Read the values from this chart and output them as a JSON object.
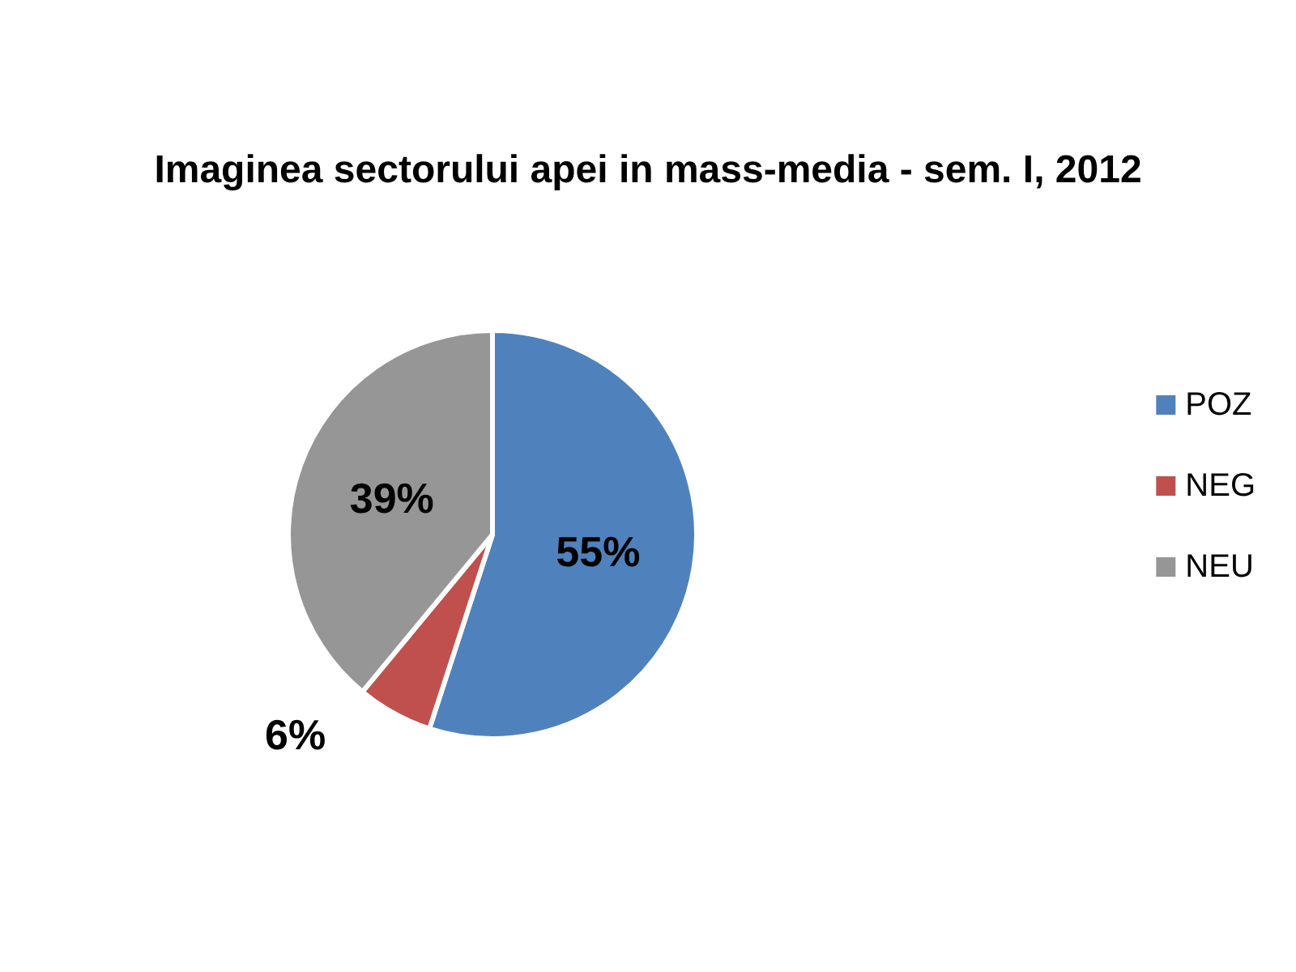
{
  "chart_data": {
    "type": "pie",
    "title": "Imaginea sectorului apei in mass-media - sem. I, 2012",
    "categories": [
      "POZ",
      "NEG",
      "NEU"
    ],
    "values": [
      55,
      6,
      39
    ],
    "colors": [
      "#4f81bd",
      "#c0504d",
      "#969696"
    ],
    "value_labels": [
      "55%",
      "6%",
      "39%"
    ],
    "legend": "right"
  }
}
